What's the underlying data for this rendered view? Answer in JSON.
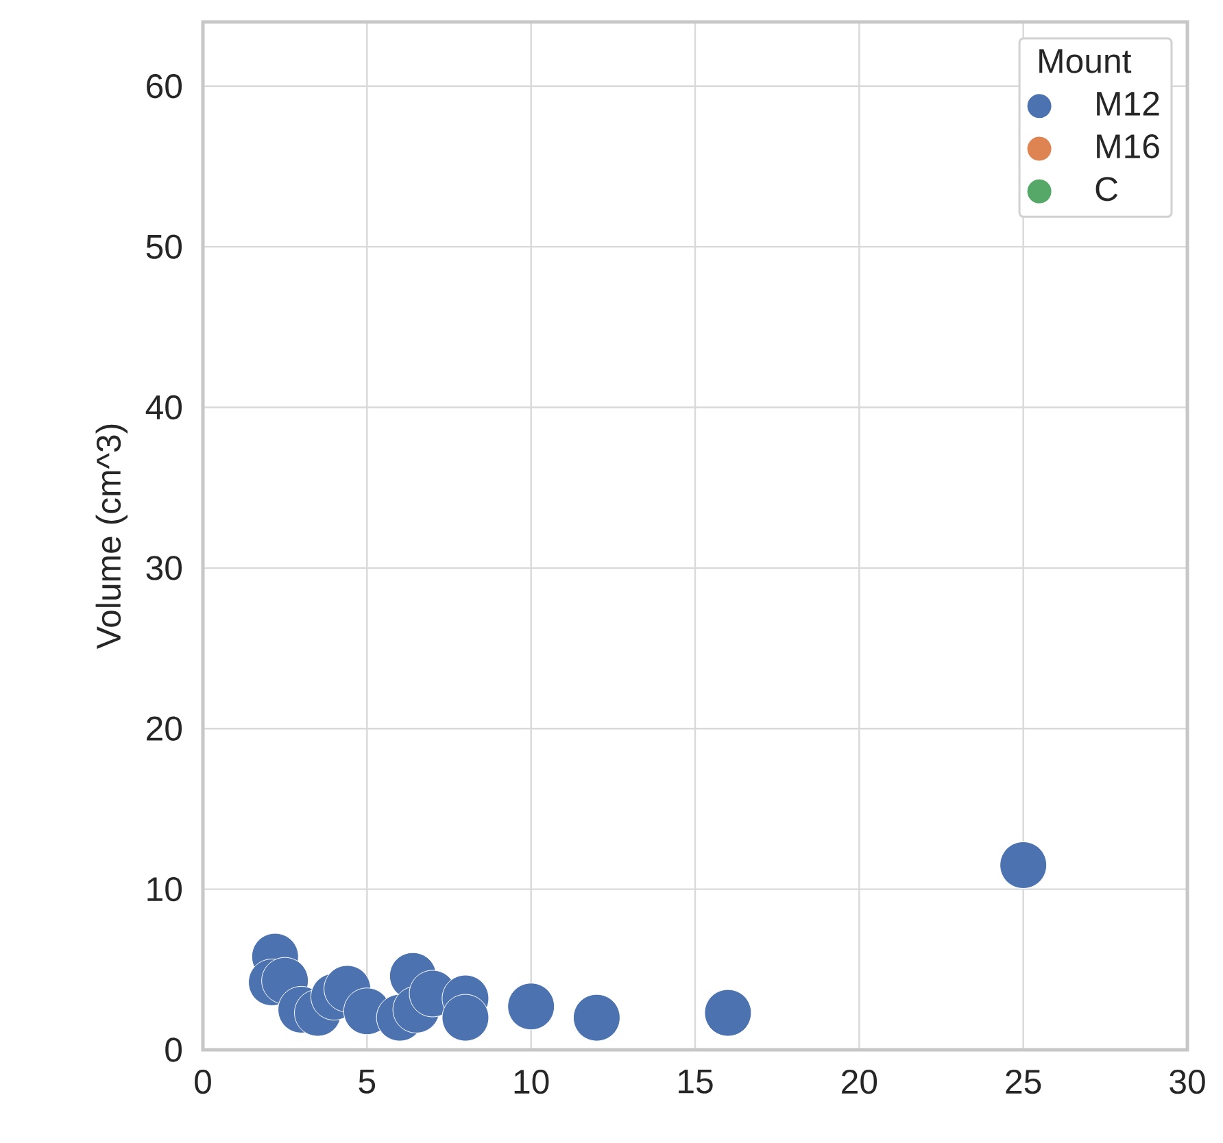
{
  "chart_data": {
    "type": "scatter",
    "ylabel": "Volume (cm^3)",
    "legend_title": "Mount",
    "xlim": [
      0,
      30
    ],
    "ylim": [
      0,
      64
    ],
    "xticks": [
      0,
      5,
      10,
      15,
      20,
      25,
      30
    ],
    "yticks": [
      0,
      10,
      20,
      30,
      40,
      50,
      60
    ],
    "grid": true,
    "legend": "top right",
    "marker": "circle",
    "series": [
      {
        "name": "M12",
        "color": "#4c72b0",
        "x": [
          2.2,
          2.1,
          2.5,
          3.0,
          3.5,
          4.0,
          4.4,
          5.0,
          6.0,
          6.4,
          6.5,
          7.0,
          8.0,
          8.0,
          10,
          12,
          16,
          25
        ],
        "values": [
          5.8,
          4.2,
          4.3,
          2.5,
          2.3,
          3.3,
          3.8,
          2.4,
          2.0,
          4.6,
          2.5,
          3.5,
          3.2,
          2.0,
          2.7,
          2.0,
          2.3,
          11.5
        ]
      },
      {
        "name": "M16",
        "color": "#dd8452"
      },
      {
        "name": "C",
        "color": "#55a868"
      }
    ]
  }
}
